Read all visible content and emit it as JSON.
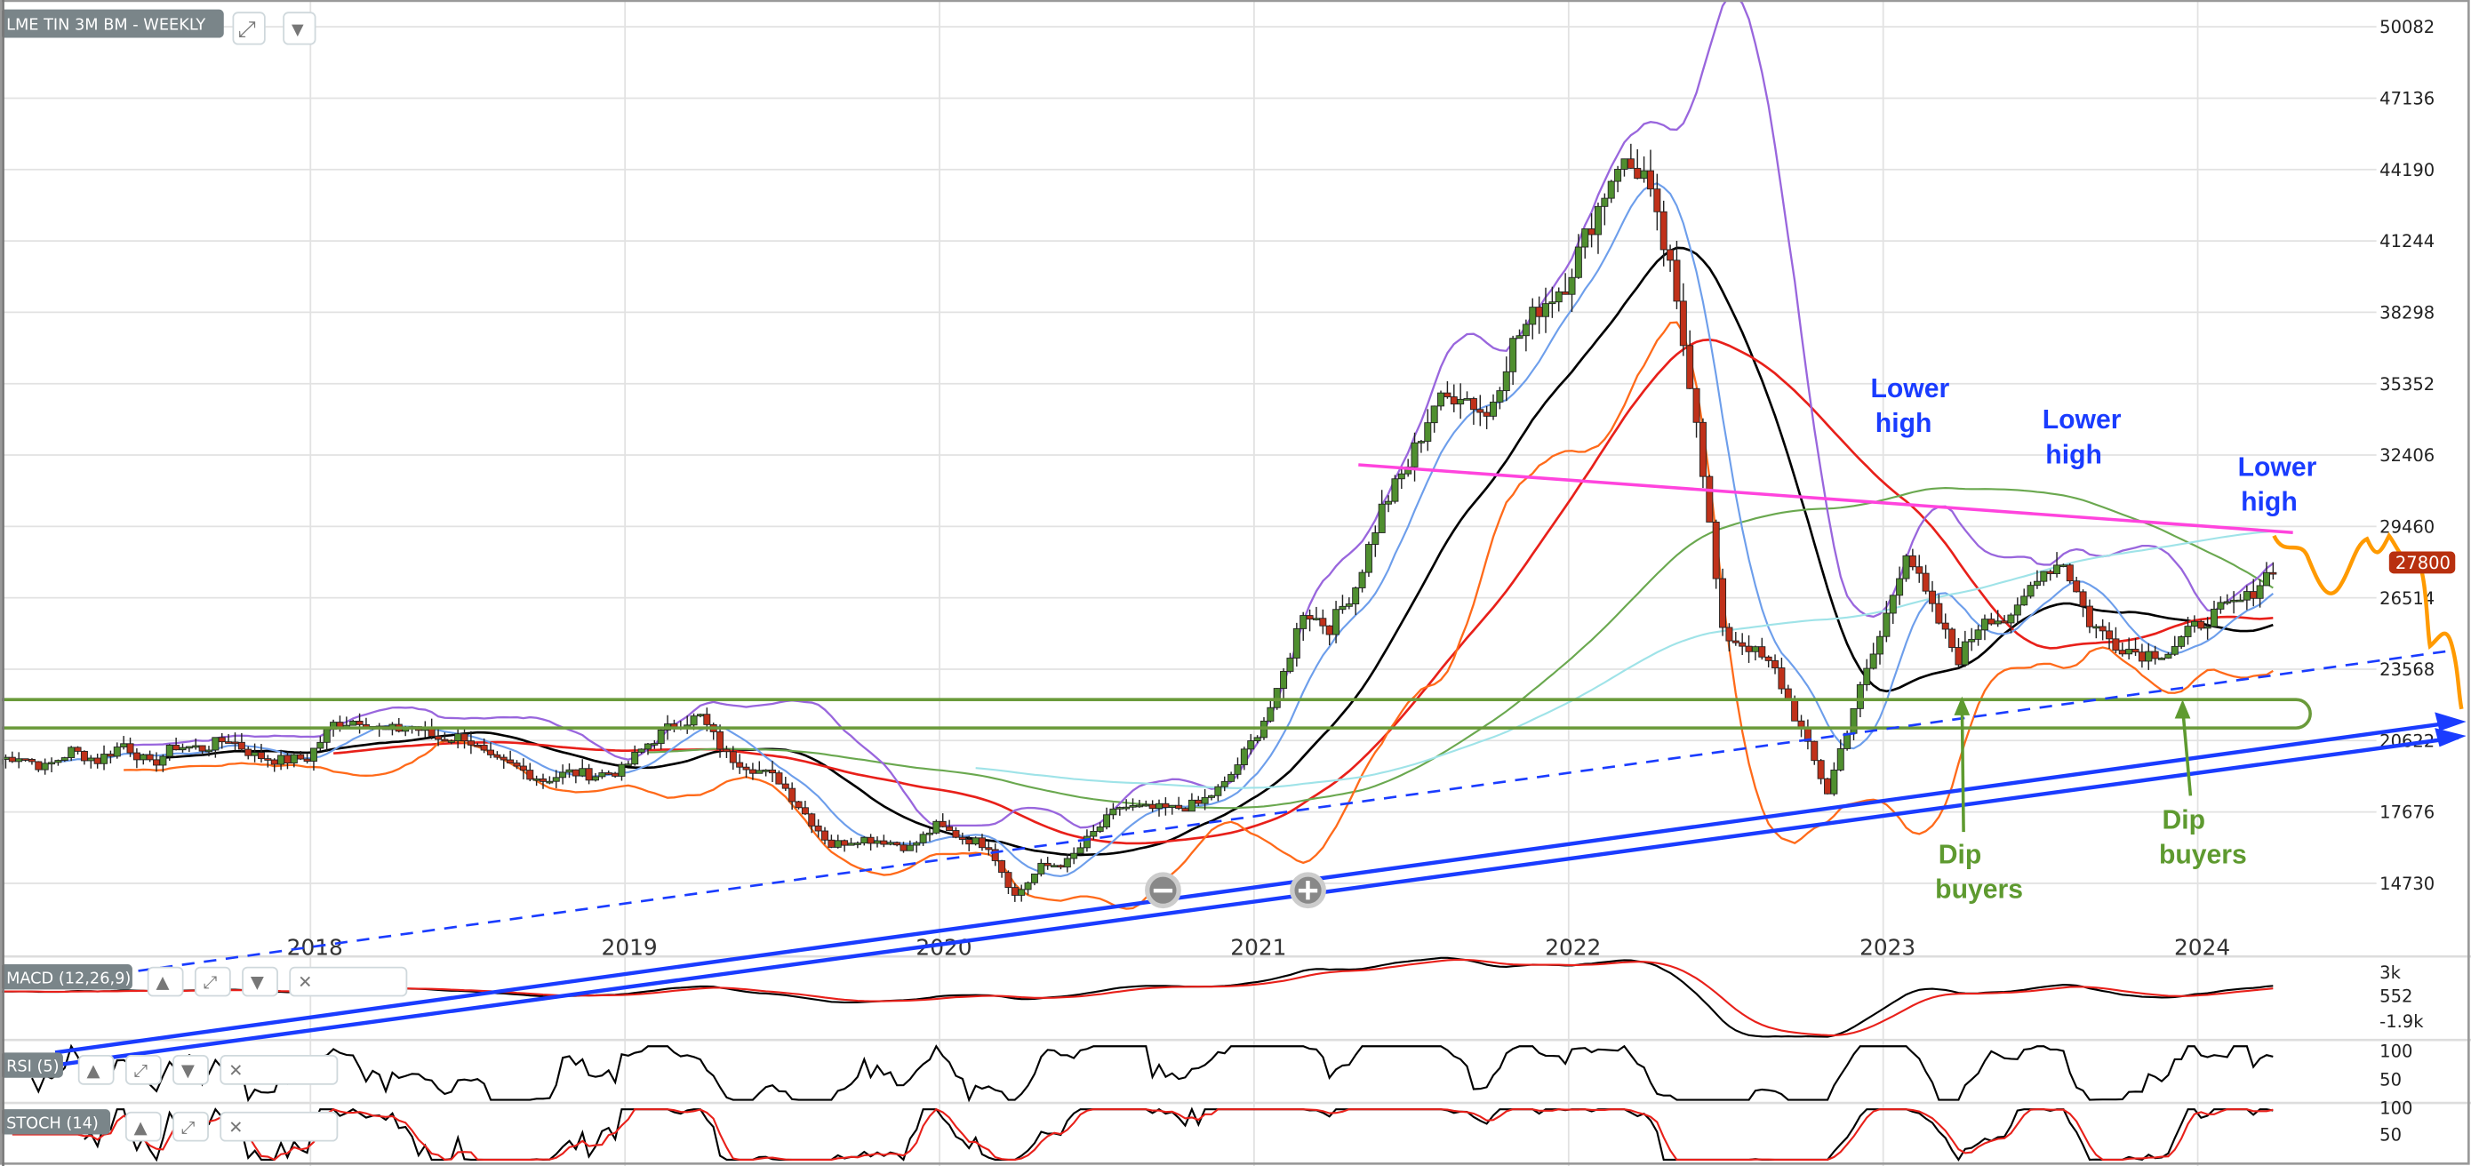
{
  "header": {
    "title": "LME TIN 3M BM - WEEKLY"
  },
  "colors": {
    "up": "#4f8f2f",
    "down": "#c0311a",
    "price_tag": "#b8300f",
    "annotation_blue": "#1a3cff",
    "annotation_green": "#5e9a30",
    "resistance": "#ff44dd",
    "forecast": "#ff9a00"
  },
  "chart_data": {
    "type": "candlestick",
    "title": "LME TIN 3M BM - WEEKLY",
    "y_ticks": [
      50082,
      47136,
      44190,
      41244,
      38298,
      35352,
      32406,
      29460,
      26514,
      23568,
      20622,
      17676,
      14730
    ],
    "x_ticks": [
      "2018",
      "2019",
      "2020",
      "2021",
      "2022",
      "2023",
      "2024"
    ],
    "ylim": [
      13000,
      51500
    ],
    "grid": true,
    "last_price": "27800",
    "start": "2017-01",
    "closes": [
      20000,
      19500,
      20200,
      19800,
      20500,
      19600,
      20400,
      20300,
      20700,
      20000,
      19800,
      19900,
      21300,
      21500,
      21000,
      21200,
      20700,
      20800,
      19800,
      19500,
      19000,
      19300,
      19200,
      19400,
      20500,
      21300,
      21600,
      20000,
      19500,
      19000,
      17600,
      16300,
      16600,
      16500,
      16200,
      17100,
      16600,
      16300,
      14200,
      15400,
      15600,
      16800,
      17900,
      17800,
      17800,
      18000,
      18800,
      20500,
      22500,
      26000,
      25300,
      27000,
      30200,
      32000,
      34500,
      35000,
      34000,
      37000,
      38500,
      39500,
      42000,
      44500,
      44000,
      40000,
      34000,
      25000,
      24500,
      23500,
      21000,
      18500,
      22000,
      24900,
      28500,
      26000,
      24000,
      25800,
      25500,
      27500,
      28000,
      25500,
      24600,
      24200,
      24300,
      25300,
      26000,
      26500,
      27800
    ],
    "moving_averages": [
      {
        "color": "#000000"
      },
      {
        "color": "#e8201a"
      },
      {
        "color": "#6aa84f"
      },
      {
        "color": "#6d9eeb"
      },
      {
        "color": "#9966dd"
      },
      {
        "color": "#ff6a1a"
      },
      {
        "color": "#9fe3e8"
      }
    ],
    "annotations": [
      {
        "text": [
          "Lower",
          "high"
        ],
        "color": "blue"
      },
      {
        "text": [
          "Lower",
          "high"
        ],
        "color": "blue"
      },
      {
        "text": [
          "Lower",
          "high"
        ],
        "color": "blue"
      },
      {
        "text": [
          "Dip",
          "buyers"
        ],
        "color": "green"
      },
      {
        "text": [
          "Dip",
          "buyers"
        ],
        "color": "green"
      }
    ],
    "indicators": [
      {
        "name": "MACD (12,26,9)",
        "ticks": [
          "3k",
          "552",
          "-1.9k"
        ]
      },
      {
        "name": "RSI (5)",
        "ticks": [
          "100",
          "50"
        ]
      },
      {
        "name": "STOCH (14)",
        "ticks": [
          "100",
          "50"
        ]
      }
    ]
  }
}
